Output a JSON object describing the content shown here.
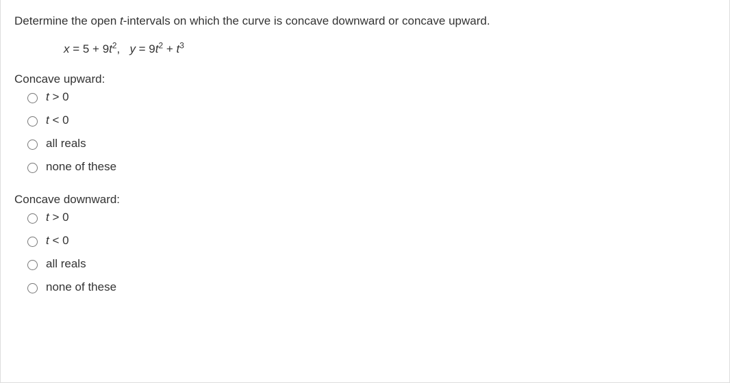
{
  "question": {
    "prefix": "Determine the open ",
    "var": "t",
    "suffix": "-intervals on which the curve is concave downward or concave upward."
  },
  "equation": {
    "x_lhs_var": "x",
    "x_eq": " = 5 + 9",
    "x_t": "t",
    "x_exp": "2",
    "comma": ",   ",
    "y_lhs_var": "y",
    "y_eq1": " = 9",
    "y_t1": "t",
    "y_exp1": "2",
    "y_plus": " + ",
    "y_t2": "t",
    "y_exp2": "3"
  },
  "groups": {
    "upward": {
      "label": "Concave upward:",
      "options": [
        {
          "var": "t",
          "rest": " > 0",
          "italic": true
        },
        {
          "var": "t",
          "rest": " < 0",
          "italic": true
        },
        {
          "plain": "all reals"
        },
        {
          "plain": "none of these"
        }
      ]
    },
    "downward": {
      "label": "Concave downward:",
      "options": [
        {
          "var": "t",
          "rest": " > 0",
          "italic": true
        },
        {
          "var": "t",
          "rest": " < 0",
          "italic": true
        },
        {
          "plain": "all reals"
        },
        {
          "plain": "none of these"
        }
      ]
    }
  }
}
